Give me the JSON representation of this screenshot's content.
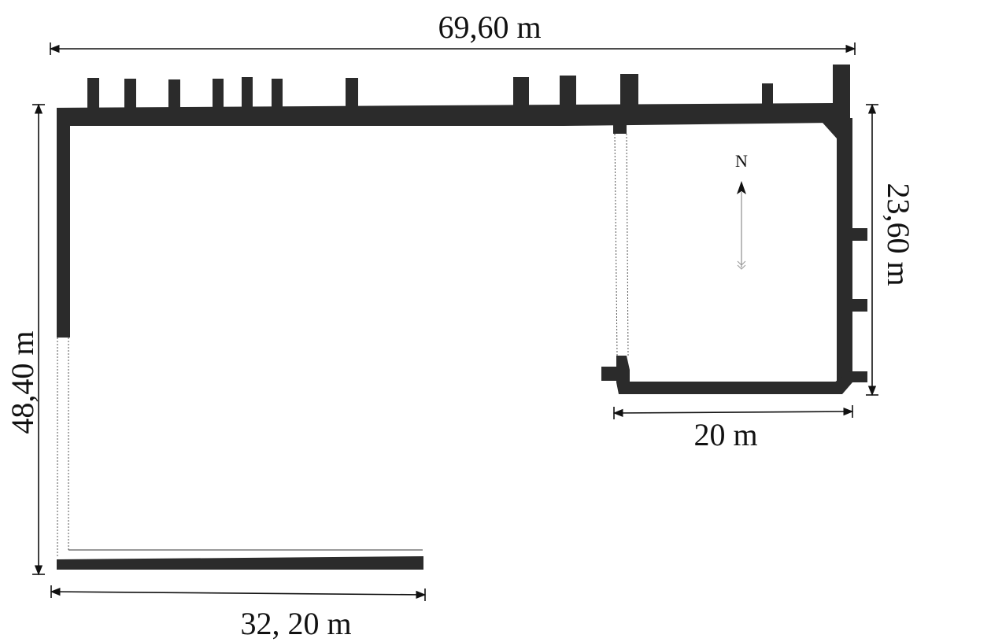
{
  "colors": {
    "wall": "#2b2b2b",
    "line": "#111111",
    "background": "#ffffff"
  },
  "dimensions": {
    "top_length": "69,60 m",
    "left_length": "48,40 m",
    "right_length": "23,60 m",
    "annex_bottom_length": "20 m",
    "bottom_length": "32, 20 m"
  },
  "north_arrow": {
    "label": "N",
    "icon": "north-arrow-icon"
  }
}
